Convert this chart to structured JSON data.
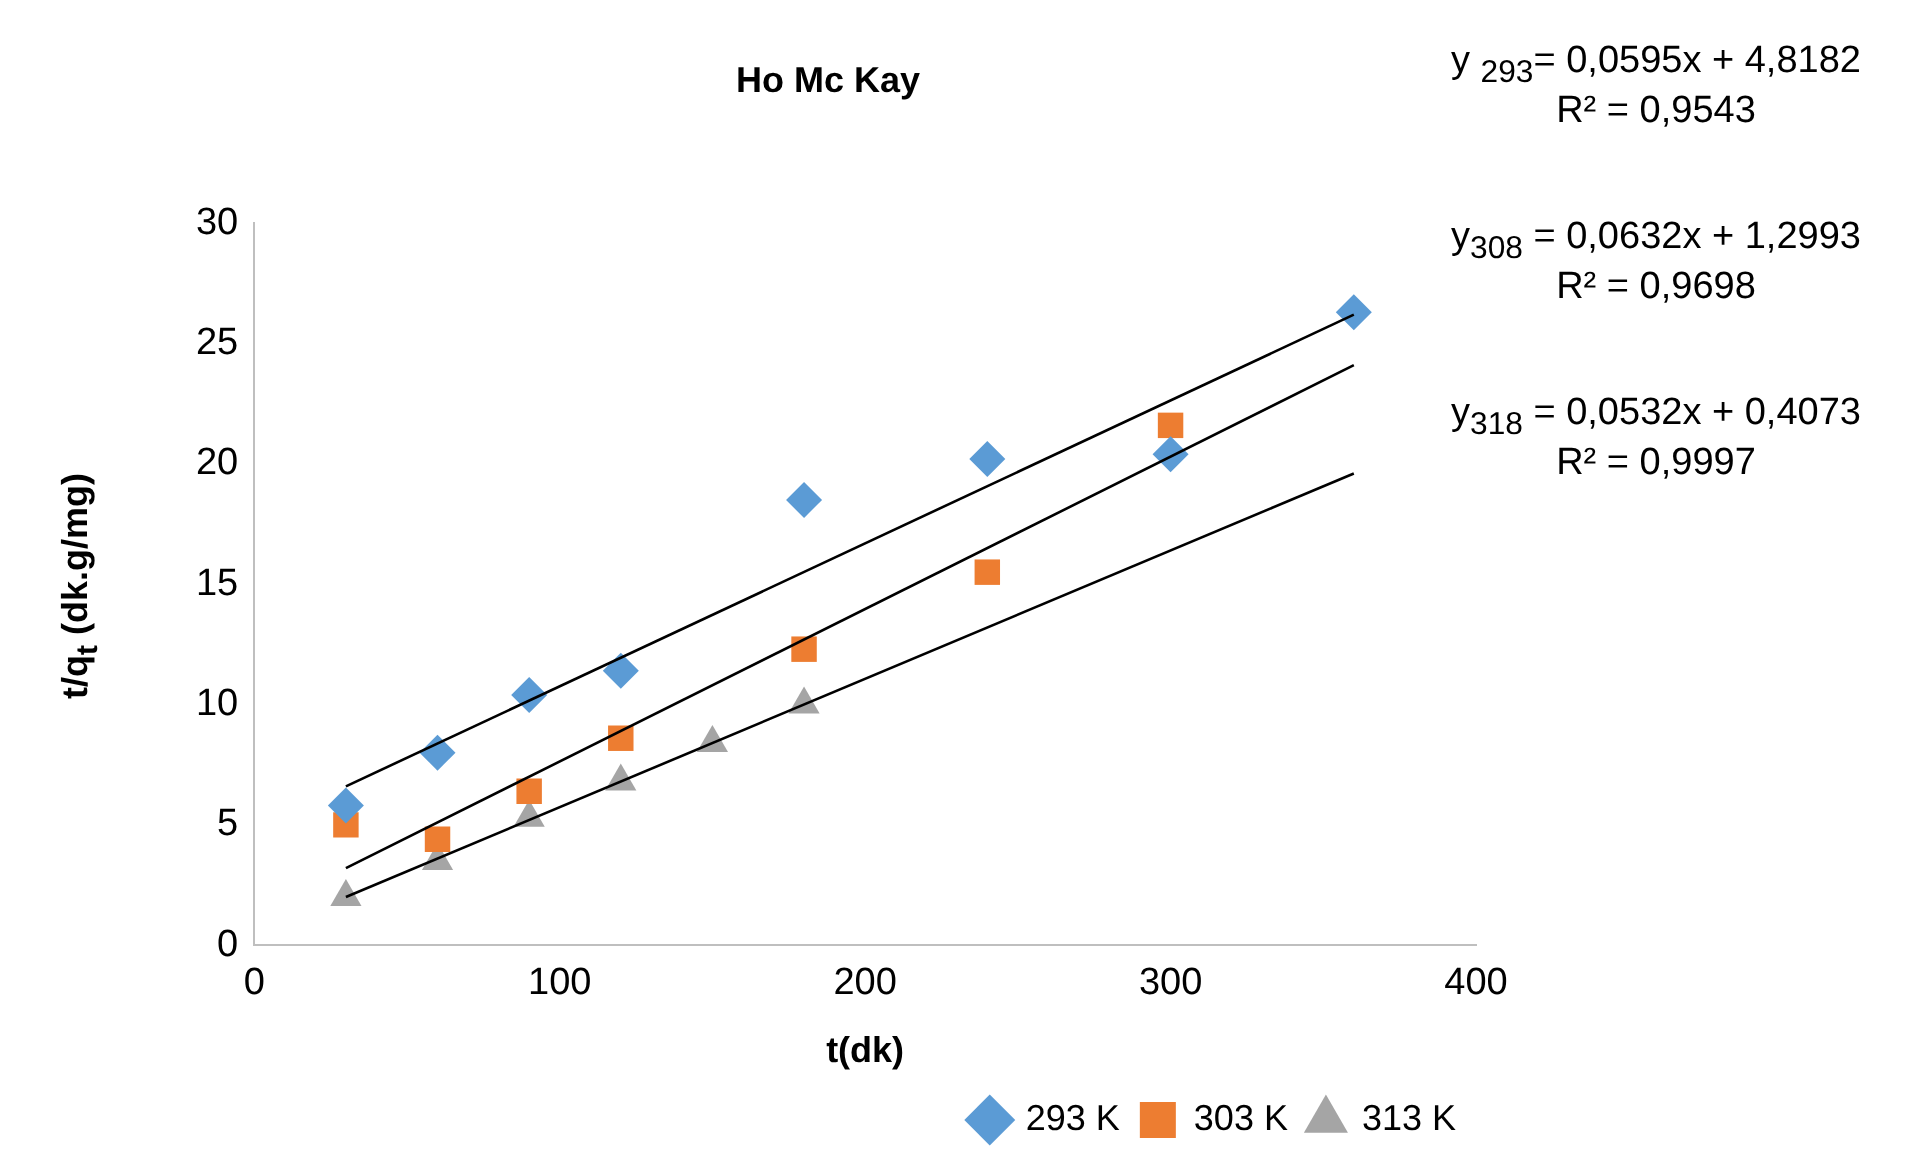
{
  "chart_data": {
    "type": "scatter",
    "title": "Ho Mc Kay",
    "xlabel": "t(dk)",
    "ylabel": "t/q$_{t}$ (dk.g/mg)",
    "xlim": [
      0,
      400
    ],
    "xticks": [
      0,
      100,
      200,
      300,
      400
    ],
    "ylim": [
      0,
      30
    ],
    "yticks": [
      0,
      5,
      10,
      15,
      20,
      25,
      30
    ],
    "grid": false,
    "legend": "bottom right",
    "series": [
      {
        "name": "293 K",
        "color": "#5b9bd5",
        "marker": "diamond",
        "x": [
          30,
          60,
          90,
          120,
          180,
          240,
          300,
          360
        ],
        "values": [
          5.8,
          8.0,
          10.4,
          11.4,
          18.5,
          20.2,
          20.4,
          26.3
        ]
      },
      {
        "name": "303 K",
        "color": "#ed7d31",
        "marker": "square",
        "x": [
          30,
          60,
          90,
          120,
          180,
          240,
          300
        ],
        "values": [
          5.0,
          4.4,
          6.4,
          8.6,
          12.3,
          15.5,
          21.6
        ]
      },
      {
        "name": "313 K",
        "color": "#a5a5a5",
        "marker": "triangle",
        "x": [
          30,
          60,
          90,
          120,
          150,
          180
        ],
        "values": [
          2.0,
          3.5,
          5.3,
          6.8,
          8.4,
          10.0
        ]
      },
      {
        "type": "line",
        "color": "#000000",
        "marker": "none",
        "x": [
          30,
          360
        ],
        "values": [
          6.6,
          26.2
        ]
      },
      {
        "type": "line",
        "color": "#000000",
        "marker": "none",
        "x": [
          30,
          360
        ],
        "values": [
          3.2,
          24.1
        ]
      },
      {
        "type": "line",
        "color": "#000000",
        "marker": "none",
        "x": [
          30,
          360
        ],
        "values": [
          2.0,
          19.6
        ]
      }
    ],
    "annotations": [
      "y $_{293}$= 0,0595x + 4,8182",
      "R² = 0,9543",
      "y$_{308}$ = 0,0632x + 1,2993",
      "R² = 0,9698",
      "y$_{318}$ = 0,0532x + 0,4073",
      "R² = 0,9997"
    ]
  }
}
